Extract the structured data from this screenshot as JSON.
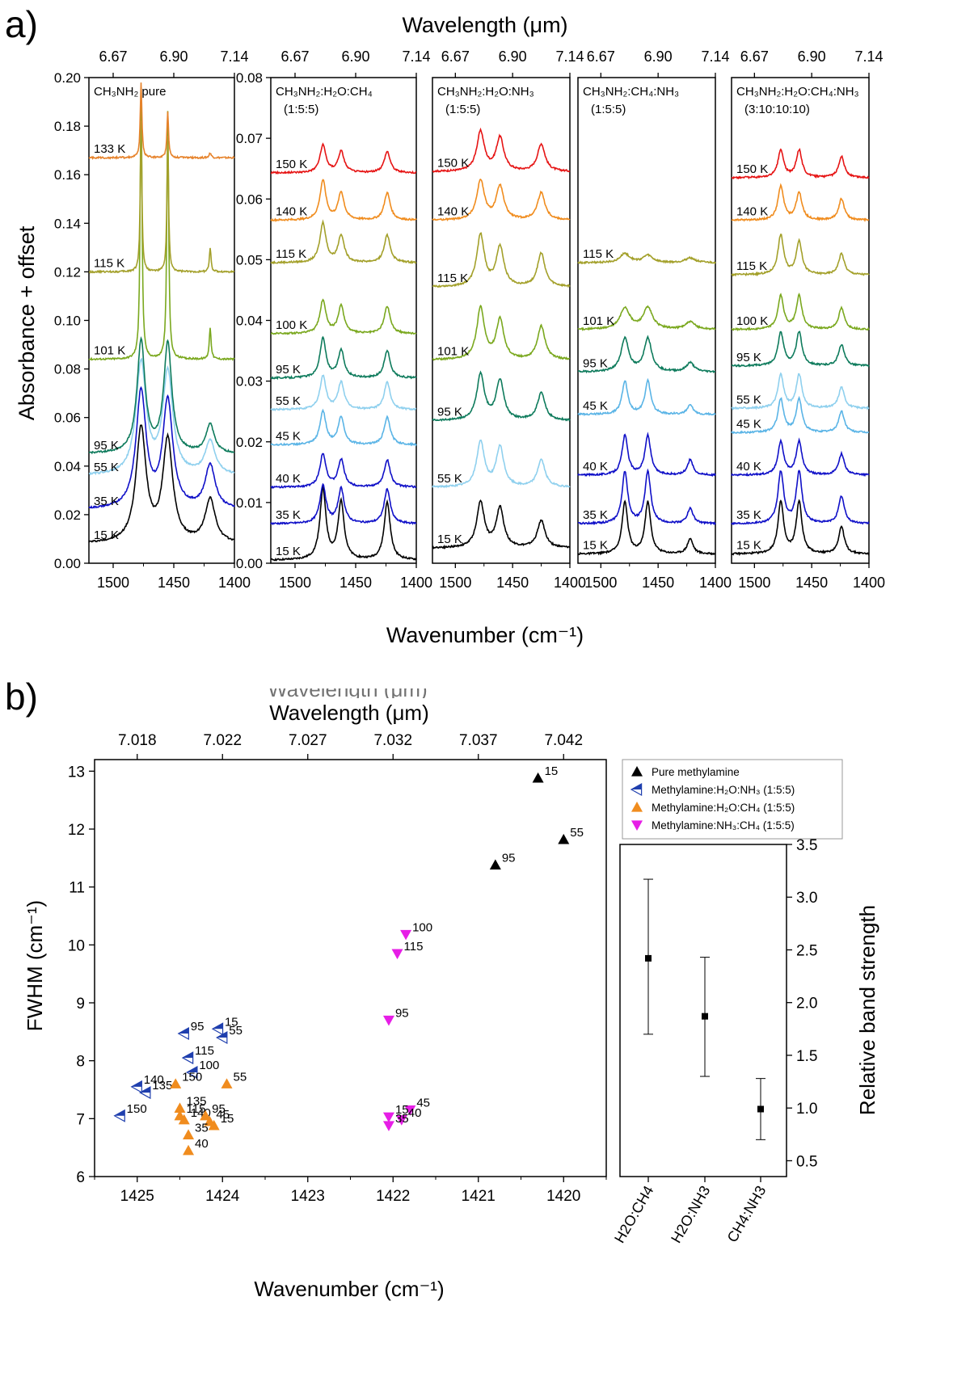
{
  "panel_a": {
    "label": "a)",
    "top_axis_title": "Wavelength (μm)",
    "bottom_axis_title": "Wavenumber (cm⁻¹)",
    "y_axis_title": "Absorbance + offset",
    "wavelength_ticks": [
      "6.67",
      "6.90",
      "7.14"
    ],
    "wavenumber_ticks": [
      "1500",
      "1450",
      "1400"
    ],
    "temp_colors": {
      "15": "#000000",
      "35": "#1010c8",
      "40": "#1010c8",
      "45": "#5ab4e6",
      "55": "#8fd0ee",
      "95": "#0e7b5c",
      "100": "#7aa81e",
      "101": "#7aa81e",
      "115": "#a3a02a",
      "133": "#e6822a",
      "140": "#f08c1e",
      "150": "#e61414"
    }
  },
  "panel_b": {
    "label": "b)",
    "overlap_text": "Wavelength (μm)",
    "top_axis_title": "Wavelength (μm)",
    "bottom_axis_title": "Wavenumber (cm⁻¹)",
    "y_axis_title": "FWHM (cm⁻¹)",
    "right_axis_title": "Relative band strength",
    "legend": [
      {
        "label": "Pure methylamine",
        "marker": "up",
        "color": "#000000"
      },
      {
        "label": "Methylamine:H₂O:NH₃ (1:5:5)",
        "marker": "left-half",
        "color": "#1f3fae"
      },
      {
        "label": "Methylamine:H₂O:CH₄ (1:5:5)",
        "marker": "up",
        "color": "#f08c1e"
      },
      {
        "label": "Methylamine:NH₃:CH₄ (1:5:5)",
        "marker": "down",
        "color": "#e61ee6"
      }
    ]
  },
  "chart_data": [
    {
      "type": "line",
      "title": "CH₃NH₂ pure",
      "xlabel": "Wavenumber (cm⁻¹)",
      "x2label": "Wavelength (μm)",
      "ylabel": "Absorbance + offset",
      "xlim": [
        1520,
        1400
      ],
      "ylim": [
        0,
        0.2
      ],
      "yticks": [
        "0.00",
        "0.02",
        "0.04",
        "0.06",
        "0.08",
        "0.10",
        "0.12",
        "0.14",
        "0.16",
        "0.18",
        "0.20"
      ],
      "peaks": [
        1477,
        1455,
        1420
      ],
      "series": [
        {
          "temp": "15",
          "label": "15 K",
          "offset": 0.008,
          "amp": [
            0.047,
            0.042,
            0.018
          ],
          "width": [
            5,
            5,
            5
          ]
        },
        {
          "temp": "35",
          "label": "35 K",
          "offset": 0.022,
          "amp": [
            0.048,
            0.044,
            0.018
          ],
          "width": [
            5,
            5,
            5
          ]
        },
        {
          "temp": "55",
          "label": "55 K",
          "offset": 0.036,
          "amp": [
            0.046,
            0.042,
            0.014
          ],
          "width": [
            5,
            5,
            5
          ]
        },
        {
          "temp": "95",
          "label": "95 K",
          "offset": 0.045,
          "amp": [
            0.046,
            0.045,
            0.012
          ],
          "width": [
            4,
            4,
            4
          ]
        },
        {
          "temp": "101",
          "label": "101 K",
          "offset": 0.084,
          "amp": [
            0.112,
            0.102,
            0.013
          ],
          "width": [
            0.9,
            0.9,
            0.9
          ]
        },
        {
          "temp": "115",
          "label": "115 K",
          "offset": 0.12,
          "amp": [
            0.062,
            0.056,
            0.01
          ],
          "width": [
            0.8,
            0.8,
            0.8
          ]
        },
        {
          "temp": "133",
          "label": "133 K",
          "offset": 0.167,
          "amp": [
            0.031,
            0.019,
            0.002
          ],
          "width": [
            0.8,
            0.8,
            1
          ]
        }
      ]
    },
    {
      "type": "line",
      "title": "CH₃NH₂:H₂O:CH₄",
      "subtitle": "(1:5:5)",
      "xlabel": "Wavenumber (cm⁻¹)",
      "xlim": [
        1520,
        1400
      ],
      "ylim": [
        0,
        0.08
      ],
      "yticks": [
        "0.00",
        "0.01",
        "0.02",
        "0.03",
        "0.04",
        "0.05",
        "0.06",
        "0.07",
        "0.08"
      ],
      "peaks": [
        1477,
        1462,
        1424
      ],
      "series": [
        {
          "temp": "15",
          "label": "15 K",
          "offset": 0.0005,
          "amp": [
            0.0115,
            0.0095,
            0.0095
          ],
          "width": [
            3,
            3,
            3
          ]
        },
        {
          "temp": "35",
          "label": "35 K",
          "offset": 0.0065,
          "amp": [
            0.0063,
            0.0057,
            0.0057
          ],
          "width": [
            3,
            3,
            3
          ]
        },
        {
          "temp": "40",
          "label": "40 K",
          "offset": 0.0125,
          "amp": [
            0.0055,
            0.0045,
            0.0045
          ],
          "width": [
            3,
            3,
            3
          ]
        },
        {
          "temp": "45",
          "label": "45 K",
          "offset": 0.0195,
          "amp": [
            0.0055,
            0.0045,
            0.0045
          ],
          "width": [
            3,
            3,
            3
          ]
        },
        {
          "temp": "55",
          "label": "55 K",
          "offset": 0.0253,
          "amp": [
            0.0055,
            0.0045,
            0.0045
          ],
          "width": [
            3,
            3,
            3
          ]
        },
        {
          "temp": "95",
          "label": "95 K",
          "offset": 0.0305,
          "amp": [
            0.0065,
            0.0045,
            0.0045
          ],
          "width": [
            3,
            3,
            3
          ]
        },
        {
          "temp": "100",
          "label": "100 K",
          "offset": 0.0378,
          "amp": [
            0.0055,
            0.0045,
            0.0045
          ],
          "width": [
            3,
            3,
            3
          ]
        },
        {
          "temp": "115",
          "label": "115 K",
          "offset": 0.0495,
          "amp": [
            0.0065,
            0.0045,
            0.0045
          ],
          "width": [
            3,
            3,
            3
          ]
        },
        {
          "temp": "140",
          "label": "140 K",
          "offset": 0.0565,
          "amp": [
            0.0065,
            0.0045,
            0.0045
          ],
          "width": [
            3,
            3,
            3
          ]
        },
        {
          "temp": "150",
          "label": "150 K",
          "offset": 0.0643,
          "amp": [
            0.0045,
            0.0035,
            0.0035
          ],
          "width": [
            3,
            3,
            3
          ]
        }
      ]
    },
    {
      "type": "line",
      "title": "CH₃NH₂:H₂O:NH₃",
      "subtitle": "(1:5:5)",
      "xlabel": "Wavenumber (cm⁻¹)",
      "xlim": [
        1520,
        1400
      ],
      "ylim": [
        0,
        0.08
      ],
      "peaks": [
        1478,
        1461,
        1425
      ],
      "series": [
        {
          "temp": "15",
          "label": "15 K",
          "offset": 0.0025,
          "amp": [
            0.0075,
            0.0065,
            0.0045
          ],
          "width": [
            4,
            4,
            4
          ]
        },
        {
          "temp": "55",
          "label": "55 K",
          "offset": 0.0125,
          "amp": [
            0.0075,
            0.0065,
            0.0045
          ],
          "width": [
            4,
            4,
            4
          ]
        },
        {
          "temp": "95",
          "label": "95 K",
          "offset": 0.0235,
          "amp": [
            0.0075,
            0.0065,
            0.0045
          ],
          "width": [
            4,
            4,
            4
          ]
        },
        {
          "temp": "101",
          "label": "101 K",
          "offset": 0.0335,
          "amp": [
            0.0085,
            0.0065,
            0.0055
          ],
          "width": [
            4,
            4,
            4
          ]
        },
        {
          "temp": "115",
          "label": "115 K",
          "offset": 0.0455,
          "amp": [
            0.0085,
            0.0065,
            0.0055
          ],
          "width": [
            4,
            4,
            4
          ]
        },
        {
          "temp": "140",
          "label": "140 K",
          "offset": 0.0565,
          "amp": [
            0.0065,
            0.0055,
            0.0045
          ],
          "width": [
            4,
            4,
            4
          ]
        },
        {
          "temp": "150",
          "label": "150 K",
          "offset": 0.0645,
          "amp": [
            0.0065,
            0.0055,
            0.0045
          ],
          "width": [
            4,
            4,
            4
          ]
        }
      ]
    },
    {
      "type": "line",
      "title": "CH₃NH₂:CH₄:NH₃",
      "subtitle": "(1:5:5)",
      "xlabel": "Wavenumber (cm⁻¹)",
      "xlim": [
        1520,
        1400
      ],
      "ylim": [
        0,
        0.08
      ],
      "peaks": [
        1479,
        1459,
        1422
      ],
      "series": [
        {
          "temp": "15",
          "label": "15 K",
          "offset": 0.0015,
          "amp": [
            0.0085,
            0.0085,
            0.0025
          ],
          "width": [
            3,
            3,
            3
          ]
        },
        {
          "temp": "35",
          "label": "35 K",
          "offset": 0.0065,
          "amp": [
            0.0085,
            0.0085,
            0.0025
          ],
          "width": [
            3,
            3,
            3
          ]
        },
        {
          "temp": "40",
          "label": "40 K",
          "offset": 0.0145,
          "amp": [
            0.0065,
            0.0065,
            0.0025
          ],
          "width": [
            3,
            3,
            3
          ]
        },
        {
          "temp": "45",
          "label": "45 K",
          "offset": 0.0245,
          "amp": [
            0.0055,
            0.0055,
            0.0015
          ],
          "width": [
            3,
            3,
            3
          ]
        },
        {
          "temp": "95",
          "label": "95 K",
          "offset": 0.0315,
          "amp": [
            0.0055,
            0.0055,
            0.0015
          ],
          "width": [
            4,
            4,
            4
          ]
        },
        {
          "temp": "101",
          "label": "101 K",
          "offset": 0.0385,
          "amp": [
            0.0035,
            0.0035,
            0.0012
          ],
          "width": [
            5,
            5,
            5
          ]
        },
        {
          "temp": "115",
          "label": "115 K",
          "offset": 0.0495,
          "amp": [
            0.0015,
            0.0012,
            0.0008
          ],
          "width": [
            5,
            5,
            5
          ]
        }
      ]
    },
    {
      "type": "line",
      "title": "CH₃NH₂:H₂O:CH₄:NH₃",
      "subtitle": "(3:10:10:10)",
      "xlabel": "Wavenumber (cm⁻¹)",
      "xlim": [
        1520,
        1400
      ],
      "ylim": [
        0,
        0.08
      ],
      "peaks": [
        1477,
        1461,
        1424
      ],
      "series": [
        {
          "temp": "15",
          "label": "15 K",
          "offset": 0.0015,
          "amp": [
            0.0085,
            0.0085,
            0.0045
          ],
          "width": [
            3,
            3,
            3
          ]
        },
        {
          "temp": "35",
          "label": "35 K",
          "offset": 0.0065,
          "amp": [
            0.0085,
            0.0085,
            0.0045
          ],
          "width": [
            3,
            3,
            3
          ]
        },
        {
          "temp": "40",
          "label": "40 K",
          "offset": 0.0145,
          "amp": [
            0.0055,
            0.0055,
            0.0035
          ],
          "width": [
            3,
            3,
            3
          ]
        },
        {
          "temp": "45",
          "label": "45 K",
          "offset": 0.0215,
          "amp": [
            0.0055,
            0.0055,
            0.0035
          ],
          "width": [
            3,
            3,
            3
          ]
        },
        {
          "temp": "55",
          "label": "55 K",
          "offset": 0.0255,
          "amp": [
            0.0055,
            0.0055,
            0.0035
          ],
          "width": [
            3,
            3,
            3
          ]
        },
        {
          "temp": "95",
          "label": "95 K",
          "offset": 0.0325,
          "amp": [
            0.0055,
            0.0055,
            0.0035
          ],
          "width": [
            3,
            3,
            3
          ]
        },
        {
          "temp": "100",
          "label": "100 K",
          "offset": 0.0385,
          "amp": [
            0.0055,
            0.0055,
            0.0035
          ],
          "width": [
            3,
            3,
            3
          ]
        },
        {
          "temp": "115",
          "label": "115 K",
          "offset": 0.0475,
          "amp": [
            0.0065,
            0.0055,
            0.0035
          ],
          "width": [
            3,
            3,
            3
          ]
        },
        {
          "temp": "140",
          "label": "140 K",
          "offset": 0.0565,
          "amp": [
            0.0055,
            0.0045,
            0.0035
          ],
          "width": [
            3,
            3,
            3
          ]
        },
        {
          "temp": "150",
          "label": "150 K",
          "offset": 0.0635,
          "amp": [
            0.0045,
            0.0045,
            0.0035
          ],
          "width": [
            3,
            3,
            3
          ]
        }
      ]
    },
    {
      "type": "scatter",
      "xlabel": "Wavenumber (cm⁻¹)",
      "x2label": "Wavelength (μm)",
      "ylabel": "FWHM (cm⁻¹)",
      "xlim": [
        1425.5,
        1419.5
      ],
      "ylim": [
        6,
        13.2
      ],
      "xticks": [
        "1425",
        "1424",
        "1423",
        "1422",
        "1421",
        "1420"
      ],
      "yticks": [
        "6",
        "7",
        "8",
        "9",
        "10",
        "11",
        "12",
        "13"
      ],
      "x2ticks": [
        "7.018",
        "7.022",
        "7.027",
        "7.032",
        "7.037",
        "7.042"
      ],
      "series": [
        {
          "name": "Pure methylamine",
          "marker": "up",
          "color": "#000000",
          "points": [
            {
              "x": 1420.3,
              "y": 12.88,
              "label": "15"
            },
            {
              "x": 1420.0,
              "y": 11.82,
              "label": "55"
            },
            {
              "x": 1420.8,
              "y": 11.38,
              "label": "95"
            }
          ]
        },
        {
          "name": "Methylamine:H₂O:NH₃ (1:5:5)",
          "marker": "left-half",
          "color": "#1f3fae",
          "points": [
            {
              "x": 1424.05,
              "y": 8.55,
              "label": "15"
            },
            {
              "x": 1424.0,
              "y": 8.4,
              "label": "55"
            },
            {
              "x": 1424.45,
              "y": 8.47,
              "label": "95"
            },
            {
              "x": 1424.35,
              "y": 7.8,
              "label": "100"
            },
            {
              "x": 1424.4,
              "y": 8.05,
              "label": "115"
            },
            {
              "x": 1424.9,
              "y": 7.45,
              "label": "135"
            },
            {
              "x": 1425.0,
              "y": 7.55,
              "label": "140"
            },
            {
              "x": 1425.2,
              "y": 7.05,
              "label": "150"
            }
          ]
        },
        {
          "name": "Methylamine:H₂O:CH₄ (1:5:5)",
          "marker": "up",
          "color": "#f08c1e",
          "points": [
            {
              "x": 1423.95,
              "y": 7.6,
              "label": "55"
            },
            {
              "x": 1424.55,
              "y": 7.6,
              "label": "150"
            },
            {
              "x": 1424.5,
              "y": 7.18,
              "label": "135"
            },
            {
              "x": 1424.5,
              "y": 7.05,
              "label": "115"
            },
            {
              "x": 1424.45,
              "y": 6.98,
              "label": "140"
            },
            {
              "x": 1424.2,
              "y": 7.05,
              "label": "95"
            },
            {
              "x": 1424.15,
              "y": 6.95,
              "label": "45"
            },
            {
              "x": 1424.1,
              "y": 6.88,
              "label": "15"
            },
            {
              "x": 1424.4,
              "y": 6.72,
              "label": "35"
            },
            {
              "x": 1424.4,
              "y": 6.45,
              "label": "40"
            }
          ]
        },
        {
          "name": "Methylamine:NH₃:CH₄ (1:5:5)",
          "marker": "down",
          "color": "#e61ee6",
          "points": [
            {
              "x": 1421.85,
              "y": 10.18,
              "label": "100"
            },
            {
              "x": 1421.95,
              "y": 9.85,
              "label": "115"
            },
            {
              "x": 1422.05,
              "y": 8.7,
              "label": "95"
            },
            {
              "x": 1421.8,
              "y": 7.15,
              "label": "45"
            },
            {
              "x": 1422.05,
              "y": 7.03,
              "label": "15"
            },
            {
              "x": 1421.9,
              "y": 6.98,
              "label": "40"
            },
            {
              "x": 1422.05,
              "y": 6.88,
              "label": "35"
            }
          ]
        }
      ]
    },
    {
      "type": "scatter",
      "title": "",
      "ylabel": "Relative band strength",
      "ylim": [
        0.35,
        3.5
      ],
      "yticks": [
        "0.5",
        "1.0",
        "1.5",
        "2.0",
        "2.5",
        "3.0",
        "3.5"
      ],
      "categories": [
        "H2O:CH4",
        "H2O:NH3",
        "CH4:NH3"
      ],
      "values": [
        2.42,
        1.87,
        0.99
      ],
      "errors": [
        [
          1.7,
          3.17
        ],
        [
          1.3,
          2.43
        ],
        [
          0.7,
          1.28
        ]
      ]
    }
  ]
}
